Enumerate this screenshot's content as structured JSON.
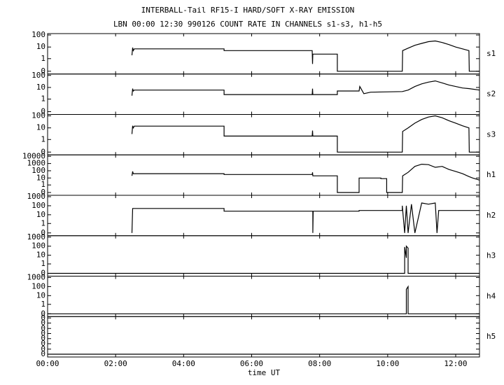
{
  "figure": {
    "title": "INTERBALL-Tail RF15-I HARD/SOFT X-RAY EMISSION",
    "subtitle": "LBN 00:00 12:30 990126  COUNT RATE IN CHANNELS s1-s3, h1-h5",
    "xlabel": "time UT",
    "xlim": [
      0,
      12.7
    ],
    "xticks": [
      {
        "value": 0,
        "label": "00:00"
      },
      {
        "value": 2,
        "label": "02:00"
      },
      {
        "value": 4,
        "label": "04:00"
      },
      {
        "value": 6,
        "label": "06:00"
      },
      {
        "value": 8,
        "label": "08:00"
      },
      {
        "value": 10,
        "label": "10:00"
      },
      {
        "value": 12,
        "label": "12:00"
      }
    ]
  },
  "chart_data": [
    {
      "type": "line",
      "label": "s1",
      "color": "#000000",
      "yscale": "log",
      "ylim": [
        0,
        100
      ],
      "yticks": [
        0,
        1,
        10,
        100
      ],
      "x": [
        2.48,
        2.5,
        2.52,
        2.55,
        5.19,
        5.19,
        7.78,
        7.79,
        7.8,
        8.52,
        8.52,
        10.43,
        10.44,
        10.6,
        10.8,
        11.0,
        11.2,
        11.4,
        11.6,
        11.8,
        12.0,
        12.2,
        12.39,
        12.4,
        12.7
      ],
      "values": [
        2,
        9,
        5,
        7,
        7,
        5,
        5,
        0.3,
        2.5,
        2.5,
        0,
        0,
        5,
        8,
        14,
        20,
        28,
        32,
        24,
        16,
        10,
        7,
        5,
        0,
        0
      ]
    },
    {
      "type": "line",
      "label": "s2",
      "color": "#000000",
      "yscale": "log",
      "ylim": [
        0,
        100
      ],
      "yticks": [
        0,
        1,
        10,
        100
      ],
      "x": [
        2.48,
        2.5,
        2.52,
        2.55,
        5.19,
        5.19,
        7.78,
        7.79,
        7.8,
        8.52,
        8.52,
        9.16,
        9.18,
        9.3,
        9.5,
        10.43,
        10.6,
        10.8,
        11.0,
        11.2,
        11.4,
        11.6,
        11.8,
        12.0,
        12.2,
        12.4,
        12.7
      ],
      "values": [
        2,
        8,
        5,
        6,
        6,
        2.5,
        2.5,
        8,
        2.5,
        2.5,
        5,
        5,
        12,
        3,
        4,
        4.5,
        6,
        12,
        20,
        28,
        35,
        24,
        16,
        12,
        9,
        8,
        6
      ]
    },
    {
      "type": "line",
      "label": "s3",
      "color": "#000000",
      "yscale": "log",
      "ylim": [
        0,
        100
      ],
      "yticks": [
        0,
        1,
        10,
        100
      ],
      "x": [
        2.48,
        2.5,
        2.52,
        2.55,
        5.19,
        5.19,
        7.78,
        7.79,
        7.8,
        8.52,
        8.52,
        10.43,
        10.44,
        10.6,
        10.8,
        11.0,
        11.2,
        11.4,
        11.6,
        11.8,
        12.0,
        12.2,
        12.39,
        12.4,
        12.7
      ],
      "values": [
        3,
        15,
        10,
        14,
        14,
        2,
        2,
        6,
        2,
        2,
        0,
        0,
        5,
        10,
        25,
        50,
        80,
        100,
        70,
        40,
        25,
        15,
        10,
        0,
        0
      ]
    },
    {
      "type": "line",
      "label": "h1",
      "color": "#000000",
      "yscale": "log",
      "ylim": [
        0,
        10000
      ],
      "yticks": [
        0,
        1,
        10,
        100,
        1000,
        10000
      ],
      "x": [
        2.48,
        2.5,
        2.52,
        2.55,
        5.19,
        5.19,
        7.78,
        7.79,
        7.8,
        8.52,
        8.52,
        9.16,
        9.16,
        9.8,
        9.8,
        9.97,
        9.97,
        10.43,
        10.44,
        10.6,
        10.8,
        11.0,
        11.2,
        11.4,
        11.6,
        11.8,
        12.0,
        12.2,
        12.4,
        12.5,
        12.7
      ],
      "values": [
        20,
        80,
        40,
        40,
        40,
        30,
        30,
        60,
        20,
        20,
        0,
        0,
        10,
        10,
        8,
        8,
        0,
        0,
        20,
        60,
        400,
        800,
        700,
        300,
        400,
        150,
        80,
        40,
        15,
        10,
        5
      ]
    },
    {
      "type": "line",
      "label": "h2",
      "color": "#000000",
      "yscale": "log",
      "ylim": [
        0,
        1000
      ],
      "yticks": [
        0,
        1,
        10,
        100,
        1000
      ],
      "x": [
        2.48,
        2.5,
        2.52,
        5.19,
        5.19,
        7.8,
        7.8,
        7.81,
        9.16,
        9.16,
        10.43,
        10.43,
        10.5,
        10.55,
        10.6,
        10.7,
        10.8,
        11.0,
        11.2,
        11.4,
        11.45,
        11.5,
        11.55,
        12.7
      ],
      "values": [
        0,
        50,
        50,
        50,
        25,
        25,
        0,
        25,
        25,
        30,
        30,
        100,
        0,
        100,
        0,
        150,
        0,
        200,
        150,
        200,
        0,
        30,
        30,
        30
      ]
    },
    {
      "type": "line",
      "label": "h3",
      "color": "#000000",
      "yscale": "log",
      "ylim": [
        0,
        1000
      ],
      "yticks": [
        0,
        1,
        10,
        100,
        1000
      ],
      "x": [
        0,
        10.5,
        10.5,
        10.55,
        10.55,
        10.6,
        10.6,
        12.7
      ],
      "values": [
        0,
        0,
        80,
        5,
        100,
        60,
        0,
        0
      ]
    },
    {
      "type": "line",
      "label": "h4",
      "color": "#000000",
      "yscale": "log",
      "ylim": [
        0,
        1000
      ],
      "yticks": [
        0,
        1,
        10,
        100,
        1000
      ],
      "x": [
        0,
        10.55,
        10.55,
        10.6,
        10.6,
        12.7
      ],
      "values": [
        0,
        0,
        50,
        100,
        0,
        0
      ]
    },
    {
      "type": "line",
      "label": "h5",
      "color": "#000000",
      "yscale": "linear",
      "ylim": [
        0,
        1
      ],
      "yticks": [
        {
          "value": 0,
          "label": "0"
        },
        {
          "value": 0.14,
          "label": "0"
        },
        {
          "value": 0.29,
          "label": "0"
        },
        {
          "value": 0.43,
          "label": "0"
        },
        {
          "value": 0.57,
          "label": "0"
        },
        {
          "value": 0.71,
          "label": "0"
        },
        {
          "value": 0.86,
          "label": "0"
        },
        {
          "value": 1,
          "label": "0"
        }
      ],
      "x": [
        0,
        12.7
      ],
      "values": [
        0,
        0
      ]
    }
  ]
}
